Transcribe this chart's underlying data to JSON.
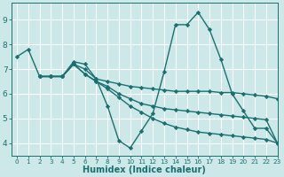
{
  "xlabel": "Humidex (Indice chaleur)",
  "xlim": [
    -0.5,
    23
  ],
  "ylim": [
    3.5,
    9.7
  ],
  "yticks": [
    4,
    5,
    6,
    7,
    8,
    9
  ],
  "xticks": [
    0,
    1,
    2,
    3,
    4,
    5,
    6,
    7,
    8,
    9,
    10,
    11,
    12,
    13,
    14,
    15,
    16,
    17,
    18,
    19,
    20,
    21,
    22,
    23
  ],
  "bg_color": "#cce8e8",
  "grid_color": "#b8d8d8",
  "line_color": "#1a7070",
  "series": [
    {
      "x": [
        0,
        1,
        2,
        3,
        4,
        5,
        6,
        7,
        8,
        9,
        10,
        11,
        12,
        13,
        14,
        15,
        16,
        17,
        18,
        19,
        20,
        21,
        22,
        23
      ],
      "y": [
        7.5,
        7.8,
        6.7,
        6.7,
        6.7,
        7.3,
        7.2,
        6.6,
        5.5,
        4.1,
        3.8,
        4.5,
        5.2,
        6.9,
        8.8,
        8.8,
        9.3,
        8.6,
        7.4,
        6.0,
        5.3,
        4.6,
        4.6,
        4.0
      ],
      "lw": 1.0
    },
    {
      "x": [
        2,
        3,
        4,
        5,
        6,
        7,
        8,
        9,
        10,
        11,
        12,
        13,
        14,
        15,
        16,
        17,
        18,
        19,
        20,
        21,
        22,
        23
      ],
      "y": [
        6.7,
        6.7,
        6.7,
        7.2,
        7.0,
        6.6,
        6.5,
        6.4,
        6.3,
        6.25,
        6.2,
        6.15,
        6.1,
        6.1,
        6.1,
        6.1,
        6.05,
        6.05,
        6.0,
        5.95,
        5.9,
        5.8
      ],
      "lw": 1.0
    },
    {
      "x": [
        2,
        3,
        4,
        5,
        6,
        7,
        8,
        9,
        10,
        11,
        12,
        13,
        14,
        15,
        16,
        17,
        18,
        19,
        20,
        21,
        22,
        23
      ],
      "y": [
        6.7,
        6.7,
        6.7,
        7.2,
        6.8,
        6.5,
        6.3,
        6.0,
        5.8,
        5.6,
        5.5,
        5.4,
        5.35,
        5.3,
        5.25,
        5.2,
        5.15,
        5.1,
        5.05,
        5.0,
        4.95,
        4.0
      ],
      "lw": 1.0
    },
    {
      "x": [
        2,
        3,
        4,
        5,
        6,
        7,
        8,
        9,
        10,
        11,
        12,
        13,
        14,
        15,
        16,
        17,
        18,
        19,
        20,
        21,
        22,
        23
      ],
      "y": [
        6.7,
        6.7,
        6.7,
        7.2,
        6.8,
        6.5,
        6.2,
        5.85,
        5.5,
        5.25,
        5.0,
        4.8,
        4.65,
        4.55,
        4.45,
        4.4,
        4.35,
        4.3,
        4.25,
        4.2,
        4.15,
        4.0
      ],
      "lw": 1.0
    }
  ]
}
